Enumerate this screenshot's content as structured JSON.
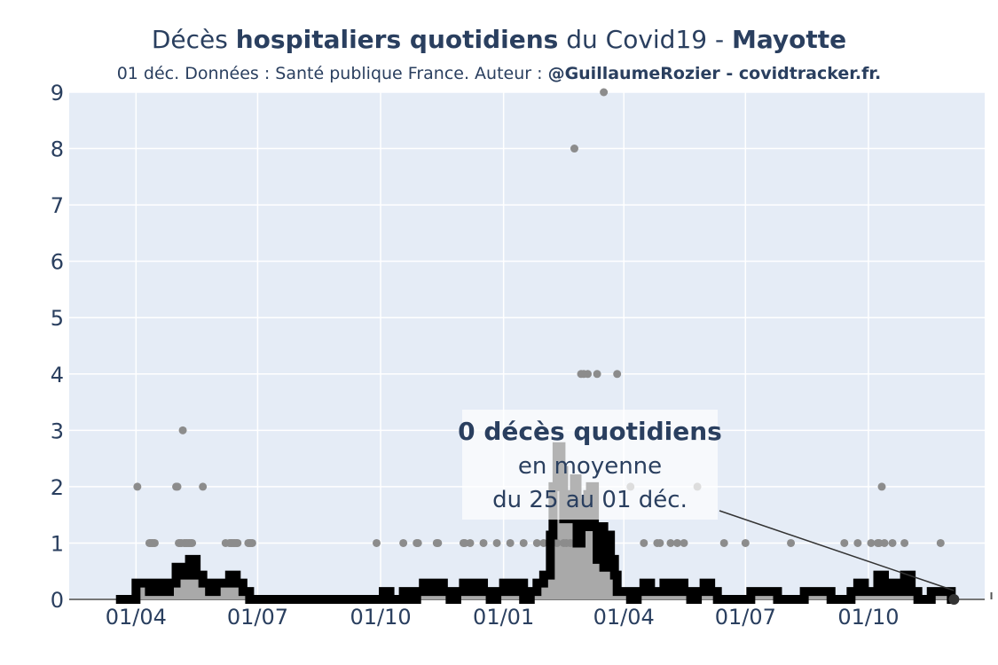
{
  "header": {
    "title_part1": "Décès ",
    "title_bold1": "hospitaliers quotidiens",
    "title_part2": " du Covid19 - ",
    "title_bold2": "Mayotte",
    "subtitle_part1": "01 déc. Données : Santé publique France. Auteur : ",
    "subtitle_bold": "@GuillaumeRozier - covidtracker.fr."
  },
  "colors": {
    "plot_bg": "#e5ecf6",
    "grid": "#ffffff",
    "points": "#8c8c8c",
    "area_fill": "#a9a9a9",
    "line": "#000000",
    "axis_text": "#2a3f5f"
  },
  "chart_data": {
    "type": "line",
    "title": "Décès hospitaliers quotidiens du Covid19 - Mayotte",
    "xlabel": "",
    "ylabel": "",
    "ylim": [
      0,
      9
    ],
    "y_ticks": [
      "0",
      "1",
      "2",
      "3",
      "4",
      "5",
      "6",
      "7",
      "8",
      "9"
    ],
    "x_tick_labels": [
      "01/04",
      "01/07",
      "01/10",
      "01/01",
      "01/04",
      "01/07",
      "01/10"
    ],
    "x_tick_days": [
      0,
      91,
      183,
      275,
      365,
      456,
      548
    ],
    "x_range_days": [
      -50,
      635
    ],
    "grid": true,
    "series": [
      {
        "kind": "daily-points",
        "x_days": [
          1,
          10,
          11,
          12,
          13,
          14,
          30,
          31,
          32,
          33,
          34,
          35,
          36,
          37,
          38,
          39,
          40,
          41,
          42,
          50,
          67,
          70,
          71,
          72,
          73,
          74,
          75,
          76,
          84,
          85,
          86,
          87,
          180,
          200,
          210,
          211,
          225,
          226,
          245,
          246,
          250,
          260,
          270,
          280,
          290,
          300,
          305,
          310,
          315,
          320,
          322,
          325,
          328,
          330,
          332,
          333,
          335,
          338,
          340,
          345,
          350,
          360,
          370,
          380,
          390,
          392,
          400,
          405,
          410,
          420,
          440,
          456,
          490,
          530,
          540,
          550,
          555,
          556,
          558,
          560,
          566,
          575,
          602
        ],
        "values": [
          2,
          1,
          1,
          1,
          1,
          1,
          2,
          2,
          1,
          1,
          1,
          3,
          1,
          1,
          1,
          1,
          1,
          1,
          1,
          2,
          1,
          1,
          1,
          1,
          1,
          1,
          1,
          1,
          1,
          1,
          1,
          1,
          1,
          1,
          1,
          1,
          1,
          1,
          1,
          1,
          1,
          1,
          1,
          1,
          1,
          1,
          1,
          1,
          1,
          1,
          1,
          1,
          8,
          1,
          1,
          4,
          4,
          4,
          2,
          4,
          9,
          4,
          2,
          1,
          1,
          1,
          1,
          1,
          1,
          2,
          1,
          1,
          1,
          1,
          1,
          1,
          1,
          1,
          2,
          1,
          1,
          1,
          1
        ]
      },
      {
        "kind": "7-day-average",
        "x_days": [
          -15,
          -5,
          0,
          5,
          10,
          15,
          20,
          25,
          30,
          35,
          40,
          45,
          50,
          55,
          60,
          65,
          70,
          75,
          80,
          85,
          90,
          95,
          100,
          180,
          185,
          190,
          200,
          205,
          210,
          215,
          220,
          225,
          230,
          235,
          240,
          245,
          250,
          255,
          260,
          265,
          270,
          275,
          280,
          285,
          290,
          295,
          300,
          305,
          310,
          312,
          315,
          318,
          320,
          322,
          325,
          328,
          330,
          333,
          335,
          338,
          340,
          343,
          345,
          348,
          350,
          353,
          355,
          358,
          360,
          365,
          370,
          375,
          380,
          385,
          390,
          395,
          400,
          405,
          410,
          415,
          420,
          425,
          430,
          435,
          440,
          445,
          450,
          455,
          460,
          480,
          490,
          500,
          520,
          530,
          535,
          540,
          545,
          550,
          555,
          560,
          565,
          570,
          575,
          580,
          585,
          590,
          595,
          600,
          605,
          610,
          612
        ],
        "values": [
          0,
          0,
          0.29,
          0.29,
          0.14,
          0.29,
          0.14,
          0.29,
          0.57,
          0.43,
          0.71,
          0.43,
          0.29,
          0.14,
          0.29,
          0.29,
          0.43,
          0.29,
          0.14,
          0,
          0,
          0,
          0,
          0,
          0.14,
          0,
          0.14,
          0,
          0.14,
          0.29,
          0.14,
          0.29,
          0.14,
          0,
          0.14,
          0.29,
          0.14,
          0.29,
          0.14,
          0,
          0.14,
          0.29,
          0.14,
          0.29,
          0,
          0.14,
          0.29,
          0.43,
          1.14,
          2.0,
          2.71,
          2.29,
          1.43,
          1.86,
          1.43,
          2.14,
          1.0,
          1.71,
          1.29,
          1.86,
          2.0,
          1.29,
          0.71,
          1.29,
          0.57,
          1.14,
          0.71,
          0.43,
          0.14,
          0.14,
          0,
          0.14,
          0.29,
          0.14,
          0.14,
          0.29,
          0.14,
          0.29,
          0.14,
          0,
          0.14,
          0.29,
          0.14,
          0,
          0,
          0,
          0,
          0,
          0.14,
          0,
          0,
          0.14,
          0,
          0,
          0.14,
          0.29,
          0.14,
          0.14,
          0.43,
          0.14,
          0.29,
          0.14,
          0.43,
          0.14,
          0,
          0,
          0.14,
          0.14,
          0.14,
          0,
          0
        ]
      }
    ],
    "annotation": {
      "line1": "0 décès quotidiens",
      "line2": "en moyenne",
      "line3": "du 25 au 01 déc."
    }
  }
}
